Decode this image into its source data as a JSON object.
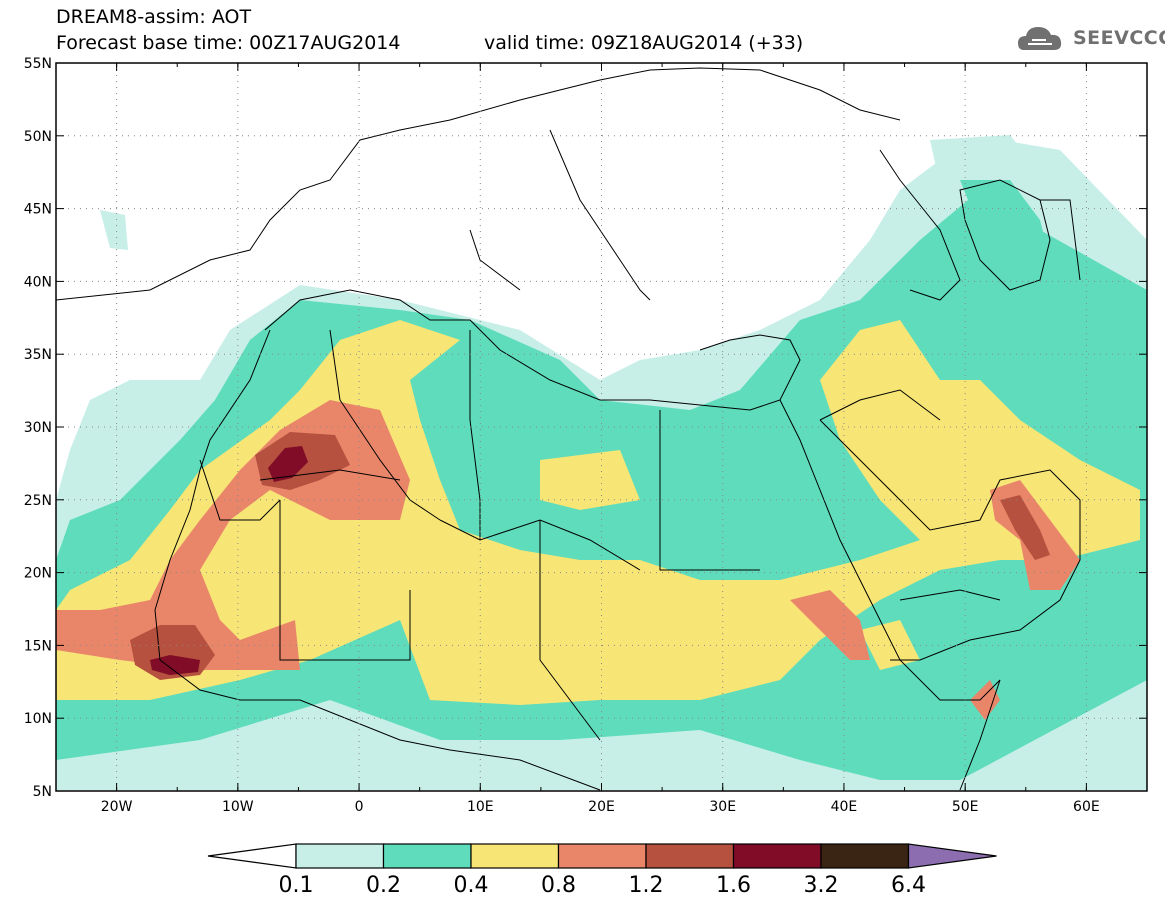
{
  "header": {
    "line1": "DREAM8-assim: AOT",
    "line2": "Forecast base time: 00Z17AUG2014",
    "line3": "valid time: 09Z18AUG2014 (+33)"
  },
  "logo": {
    "text": "SEEVCCC",
    "icon": "cloud-logo-icon"
  },
  "map": {
    "lon_range": [
      -25,
      65
    ],
    "lat_range": [
      5,
      55
    ],
    "lon_ticks": [
      "20W",
      "10W",
      "0",
      "10E",
      "20E",
      "30E",
      "40E",
      "50E",
      "60E"
    ],
    "lat_ticks": [
      "55N",
      "50N",
      "45N",
      "40N",
      "35N",
      "30N",
      "25N",
      "20N",
      "15N",
      "10N",
      "5N"
    ],
    "gridlines": "dotted"
  },
  "colorbar": {
    "labels": [
      "0.1",
      "0.2",
      "0.4",
      "0.8",
      "1.2",
      "1.6",
      "3.2",
      "6.4"
    ],
    "colors": [
      "#c7efe8",
      "#5fdcbc",
      "#f7e675",
      "#e9866a",
      "#b5513e",
      "#800c27",
      "#3a2414",
      "#8c6db0"
    ]
  }
}
